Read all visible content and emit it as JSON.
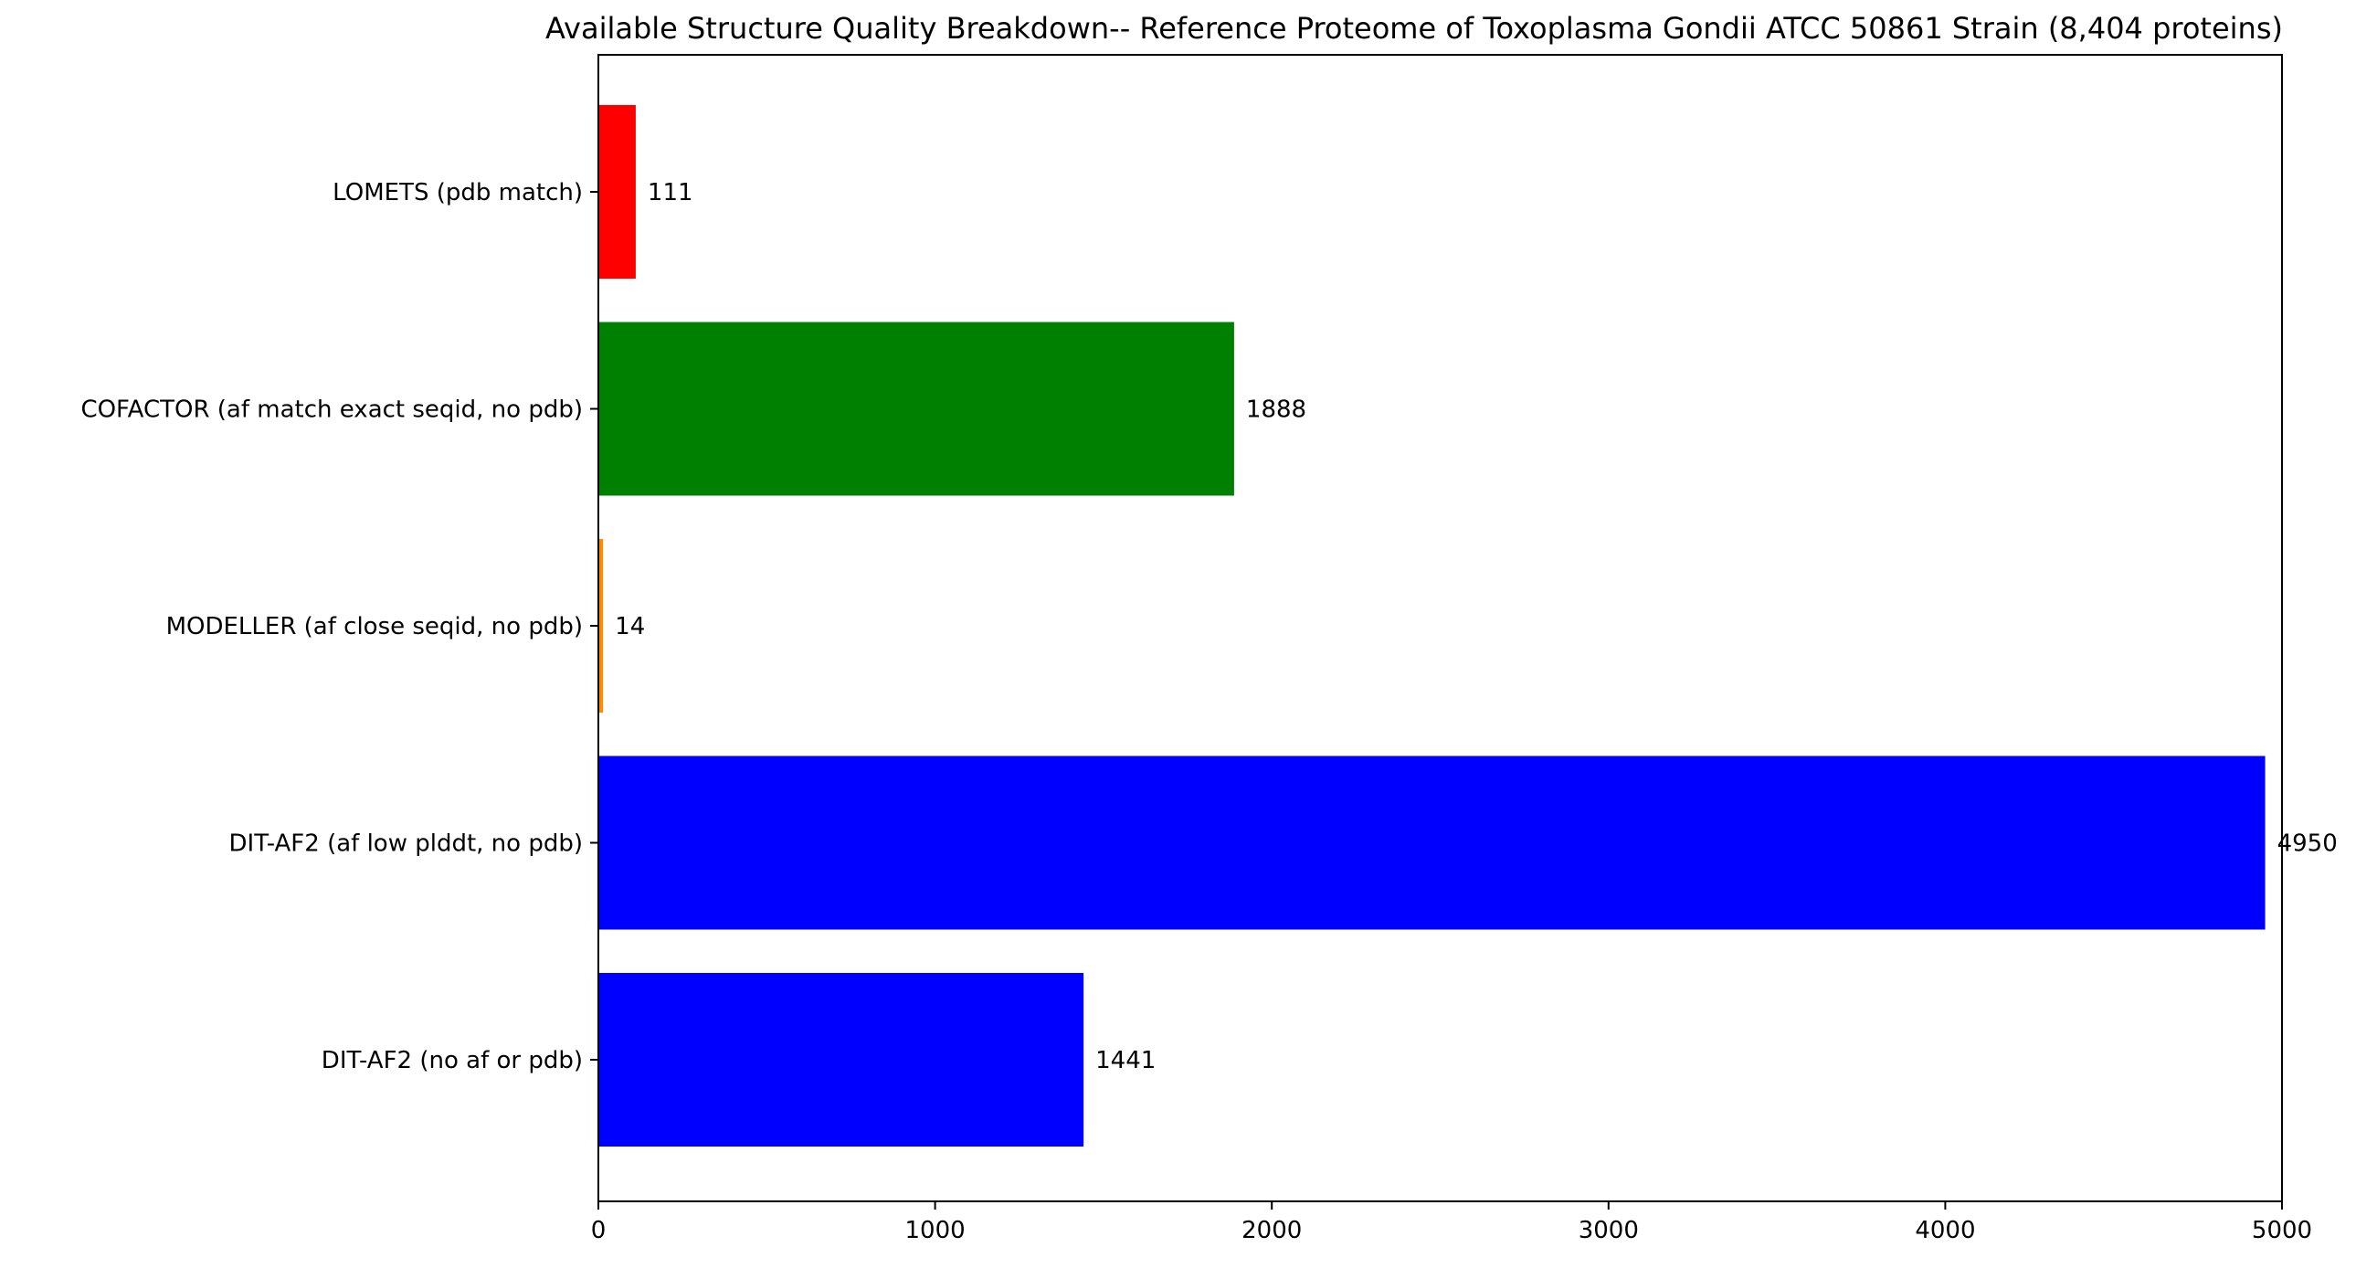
{
  "chart_data": {
    "type": "bar",
    "orientation": "horizontal",
    "title": "Available Structure Quality Breakdown-- Reference Proteome of Toxoplasma Gondii ATCC 50861 Strain (8,404 proteins)",
    "xlabel": "",
    "ylabel": "",
    "xlim": [
      0,
      5000
    ],
    "x_ticks": [
      0,
      1000,
      2000,
      3000,
      4000,
      5000
    ],
    "x_tick_labels": [
      "0",
      "1000",
      "2000",
      "3000",
      "4000",
      "5000"
    ],
    "grid": false,
    "categories": [
      "LOMETS (pdb match)",
      "COFACTOR (af match exact seqid, no pdb)",
      "MODELLER (af close seqid, no pdb)",
      "DIT-AF2 (af low plddt, no pdb)",
      "DIT-AF2 (no af or pdb)"
    ],
    "values": [
      111,
      1888,
      14,
      4950,
      1441
    ],
    "data_labels": [
      "111",
      "1888",
      "14",
      "4950",
      "1441"
    ],
    "colors": [
      "#ff0000",
      "#008000",
      "#ff8c00",
      "#0000ff",
      "#0000ff"
    ]
  }
}
